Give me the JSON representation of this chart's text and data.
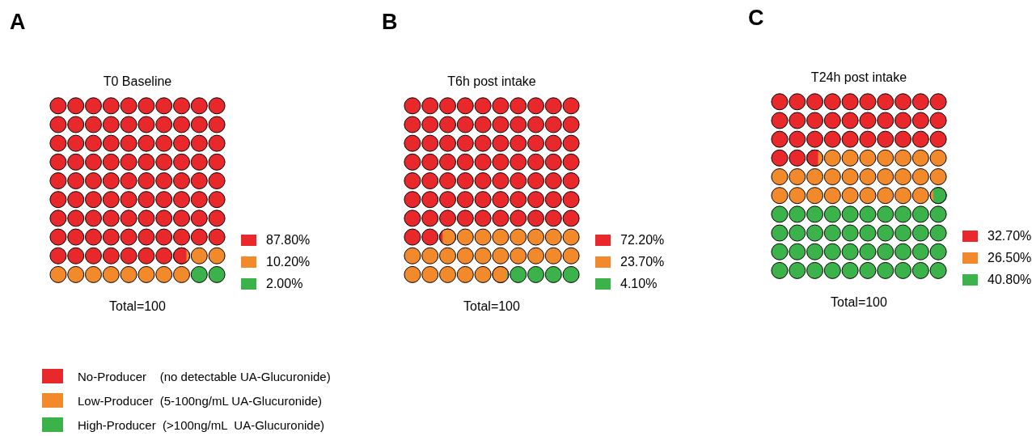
{
  "chart_data": [
    {
      "type": "other",
      "title": "T0 Baseline",
      "categories": [
        null,
        null,
        null
      ],
      "values": [
        87.8,
        10.2,
        2.0
      ],
      "value_labels": [
        "87.80%",
        "10.20%",
        "2.00%"
      ],
      "colors": [
        "#e8282b",
        "#f28a2c",
        "#3bb34a"
      ],
      "annotations": [
        "A",
        "Total=100"
      ]
    },
    {
      "type": "other",
      "title": "T6h post intake",
      "categories": [
        null,
        null,
        null
      ],
      "values": [
        72.2,
        23.7,
        4.1
      ],
      "value_labels": [
        "72.20%",
        "23.70%",
        "4.10%"
      ],
      "colors": [
        "#e8282b",
        "#f28a2c",
        "#3bb34a"
      ],
      "annotations": [
        "B",
        "Total=100"
      ]
    },
    {
      "type": "other",
      "title": "T24h post intake",
      "categories": [
        null,
        null,
        null
      ],
      "values": [
        32.7,
        26.5,
        40.8
      ],
      "value_labels": [
        "32.70%",
        "26.50%",
        "40.80%"
      ],
      "colors": [
        "#e8282b",
        "#f28a2c",
        "#3bb34a"
      ],
      "annotations": [
        "C",
        "Total=100"
      ]
    },
    {
      "type": "other",
      "categories": [
        "No-Producer    (no detectable UA-Glucuronide)",
        "Low-Producer  (5-100ng/mL UA-Glucuronide)",
        "High-Producer  (>100ng/mL  UA-Glucuronide)"
      ],
      "colors": [
        "#e8282b",
        "#f28a2c",
        "#3bb34a"
      ]
    }
  ]
}
